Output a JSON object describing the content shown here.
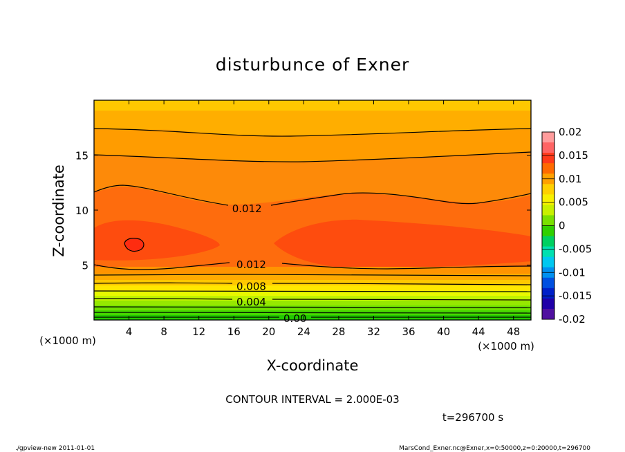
{
  "chart_data": {
    "type": "contour",
    "title": "disturbunce of Exner",
    "xlabel": "X-coordinate",
    "ylabel": "Z-coordinate",
    "x_unit": "(×1000 m)",
    "y_unit": "(×1000 m)",
    "x_ticks": [
      "4",
      "8",
      "12",
      "16",
      "20",
      "24",
      "28",
      "32",
      "36",
      "40",
      "44",
      "48"
    ],
    "y_ticks": [
      "5",
      "10",
      "15"
    ],
    "xlim": [
      0,
      50
    ],
    "ylim": [
      0,
      20
    ],
    "contour_labels": [
      {
        "text": "0.012",
        "x": 17.5,
        "z": 10.2
      },
      {
        "text": "0.012",
        "x": 18.0,
        "z": 5.1
      },
      {
        "text": "0.008",
        "x": 18.0,
        "z": 3.1
      },
      {
        "text": "0.004",
        "x": 18.0,
        "z": 1.7
      },
      {
        "text": "0.00",
        "x": 23.0,
        "z": 0.2
      }
    ],
    "colorbar": {
      "labels": [
        "0.02",
        "0.015",
        "0.01",
        "0.005",
        "0",
        "-0.005",
        "-0.01",
        "-0.015",
        "-0.02"
      ],
      "range": [
        -0.02,
        0.02
      ]
    },
    "contour_interval_text": "CONTOUR INTERVAL = 2.000E-03",
    "time_text": "t=296700 s"
  },
  "footer": {
    "left": "./gpview-new   2011-01-01",
    "right": "MarsCond_Exner.nc@Exner,x=0:50000,z=0:20000,t=296700"
  }
}
